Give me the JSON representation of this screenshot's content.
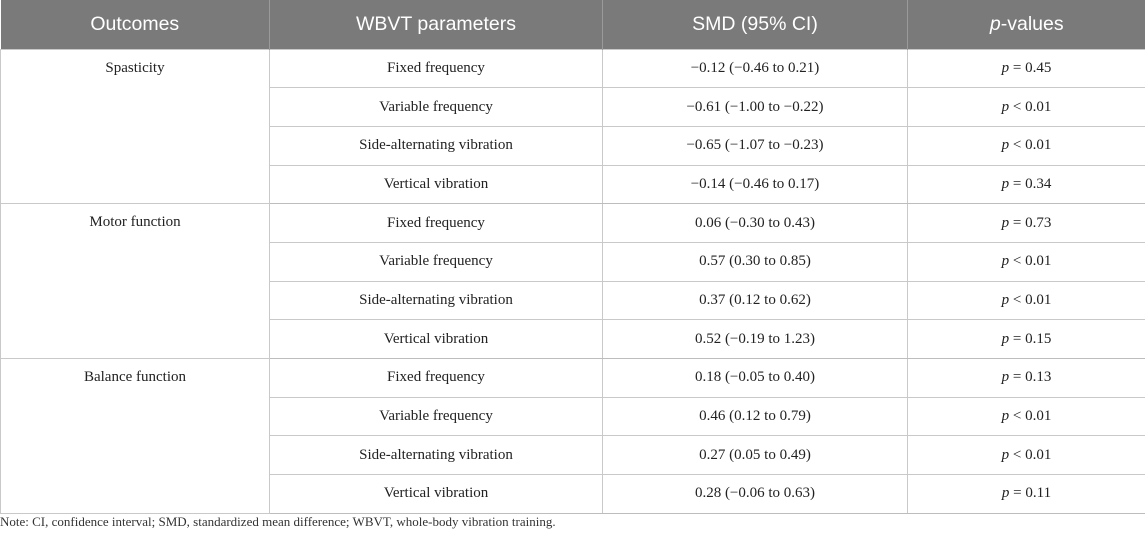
{
  "table": {
    "headers": {
      "outcomes": "Outcomes",
      "parameters": "WBVT parameters",
      "smd": "SMD (95% CI)",
      "p_italic": "p",
      "p_rest": "-values"
    },
    "groups": [
      {
        "outcome": "Spasticity",
        "rows": [
          {
            "param": "Fixed frequency",
            "smd": "−0.12 (−0.46 to 0.21)",
            "p_symbol": "p",
            "p_value": " = 0.45"
          },
          {
            "param": "Variable frequency",
            "smd": "−0.61 (−1.00 to −0.22)",
            "p_symbol": "p",
            "p_value": " < 0.01"
          },
          {
            "param": "Side-alternating vibration",
            "smd": "−0.65 (−1.07 to −0.23)",
            "p_symbol": "p",
            "p_value": " < 0.01"
          },
          {
            "param": "Vertical vibration",
            "smd": "−0.14 (−0.46 to 0.17)",
            "p_symbol": "p",
            "p_value": " = 0.34"
          }
        ]
      },
      {
        "outcome": "Motor function",
        "rows": [
          {
            "param": "Fixed frequency",
            "smd": "0.06 (−0.30 to 0.43)",
            "p_symbol": "p",
            "p_value": " = 0.73"
          },
          {
            "param": "Variable frequency",
            "smd": "0.57 (0.30 to 0.85)",
            "p_symbol": "p",
            "p_value": " < 0.01"
          },
          {
            "param": "Side-alternating vibration",
            "smd": "0.37 (0.12 to 0.62)",
            "p_symbol": "p",
            "p_value": " < 0.01"
          },
          {
            "param": "Vertical vibration",
            "smd": "0.52 (−0.19 to 1.23)",
            "p_symbol": "p",
            "p_value": " = 0.15"
          }
        ]
      },
      {
        "outcome": "Balance function",
        "rows": [
          {
            "param": "Fixed frequency",
            "smd": "0.18 (−0.05 to 0.40)",
            "p_symbol": "p",
            "p_value": " = 0.13"
          },
          {
            "param": "Variable frequency",
            "smd": "0.46 (0.12 to 0.79)",
            "p_symbol": "p",
            "p_value": " < 0.01"
          },
          {
            "param": "Side-alternating vibration",
            "smd": "0.27 (0.05 to 0.49)",
            "p_symbol": "p",
            "p_value": " < 0.01"
          },
          {
            "param": "Vertical vibration",
            "smd": "0.28 (−0.06 to 0.63)",
            "p_symbol": "p",
            "p_value": " = 0.11"
          }
        ]
      }
    ]
  },
  "note": "Note: CI, confidence interval; SMD, standardized mean difference; WBVT, whole-body vibration training.",
  "colors": {
    "header_bg": "#7a7a7a",
    "header_text": "#ffffff",
    "border": "#c9c9c9"
  }
}
